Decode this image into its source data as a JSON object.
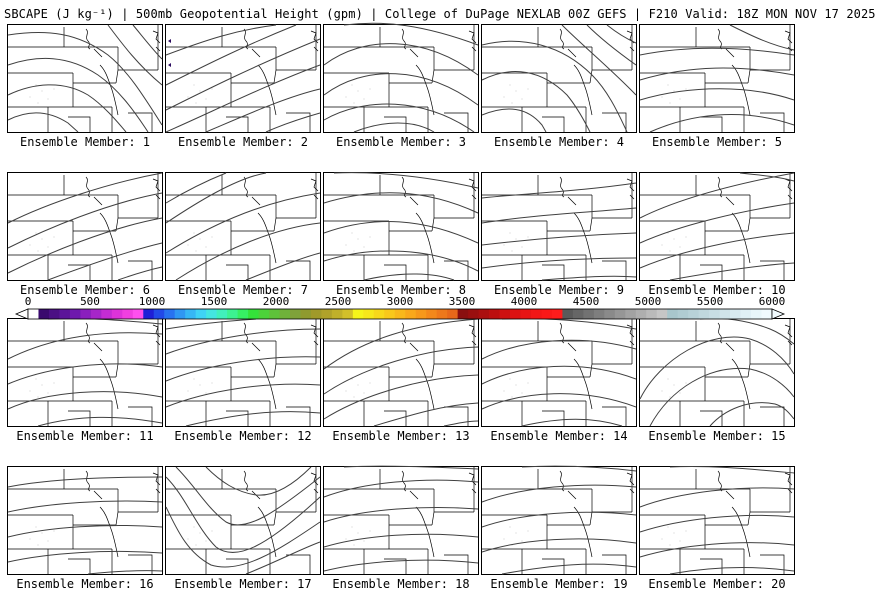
{
  "header": {
    "title": "SBCAPE (J kg⁻¹) | 500mb Geopotential Height (gpm) | College of DuPage NEXLAB 00Z GEFS | F210 Valid: 18Z MON NOV 17 2025"
  },
  "panels": [
    {
      "member": 1,
      "label": "Ensemble Member: 1"
    },
    {
      "member": 2,
      "label": "Ensemble Member: 2"
    },
    {
      "member": 3,
      "label": "Ensemble Member: 3"
    },
    {
      "member": 4,
      "label": "Ensemble Member: 4"
    },
    {
      "member": 5,
      "label": "Ensemble Member: 5"
    },
    {
      "member": 6,
      "label": "Ensemble Member: 6"
    },
    {
      "member": 7,
      "label": "Ensemble Member: 7"
    },
    {
      "member": 8,
      "label": "Ensemble Member: 8"
    },
    {
      "member": 9,
      "label": "Ensemble Member: 9"
    },
    {
      "member": 10,
      "label": "Ensemble Member: 10"
    },
    {
      "member": 11,
      "label": "Ensemble Member: 11"
    },
    {
      "member": 12,
      "label": "Ensemble Member: 12"
    },
    {
      "member": 13,
      "label": "Ensemble Member: 13"
    },
    {
      "member": 14,
      "label": "Ensemble Member: 14"
    },
    {
      "member": 15,
      "label": "Ensemble Member: 15"
    },
    {
      "member": 16,
      "label": "Ensemble Member: 16"
    },
    {
      "member": 17,
      "label": "Ensemble Member: 17"
    },
    {
      "member": 18,
      "label": "Ensemble Member: 18"
    },
    {
      "member": 19,
      "label": "Ensemble Member: 19"
    },
    {
      "member": 20,
      "label": "Ensemble Member: 20"
    }
  ],
  "colorbar": {
    "tick_labels": [
      "0",
      "500",
      "1000",
      "1500",
      "2000",
      "2500",
      "3000",
      "3500",
      "4000",
      "4500",
      "5000",
      "5500",
      "6000"
    ],
    "min": 0,
    "max": 6000,
    "colors": [
      "#ffffff",
      "#3a0a6e",
      "#4b0f84",
      "#5c1499",
      "#6e19ad",
      "#8a1fbd",
      "#a626c9",
      "#c42cd3",
      "#dd33d9",
      "#f03fe0",
      "#ff4fee",
      "#1f1fd6",
      "#2249e8",
      "#2872f0",
      "#2f97f3",
      "#36b7f5",
      "#3fd3f5",
      "#44e6e0",
      "#41f0bb",
      "#3cf291",
      "#36ef63",
      "#34e23a",
      "#4cd23a",
      "#5ec23a",
      "#6fb23a",
      "#7fa23a",
      "#8f9a2f",
      "#a09a2a",
      "#b0a22a",
      "#c0b02a",
      "#d2c02a",
      "#f5f51a",
      "#f7e81a",
      "#f8d81a",
      "#f9c81a",
      "#f9b81a",
      "#f9a81a",
      "#f6981a",
      "#f3881a",
      "#ee781a",
      "#e8681a",
      "#8a0f0f",
      "#9a0f0f",
      "#ab0f0f",
      "#bc0f0f",
      "#cd1010",
      "#dc1212",
      "#e81414",
      "#f21616",
      "#fa1818",
      "#ff1c1c",
      "#5a5a5a",
      "#666666",
      "#727272",
      "#7e7e7e",
      "#8a8a8a",
      "#969696",
      "#a2a2a2",
      "#aeaeae",
      "#bababa",
      "#c6c6c6",
      "#a8c6cc",
      "#b0ccd2",
      "#b8d2d8",
      "#c0d8de",
      "#c8dee4",
      "#d0e4ea",
      "#d8eaf0",
      "#e0f0f6",
      "#e8f6fa",
      "#f0fafe"
    ]
  },
  "styles": {
    "map_line_color": "#000000",
    "contour_color": "#404040",
    "frame_color": "#000000",
    "marker_color": "#2a0a5e"
  }
}
